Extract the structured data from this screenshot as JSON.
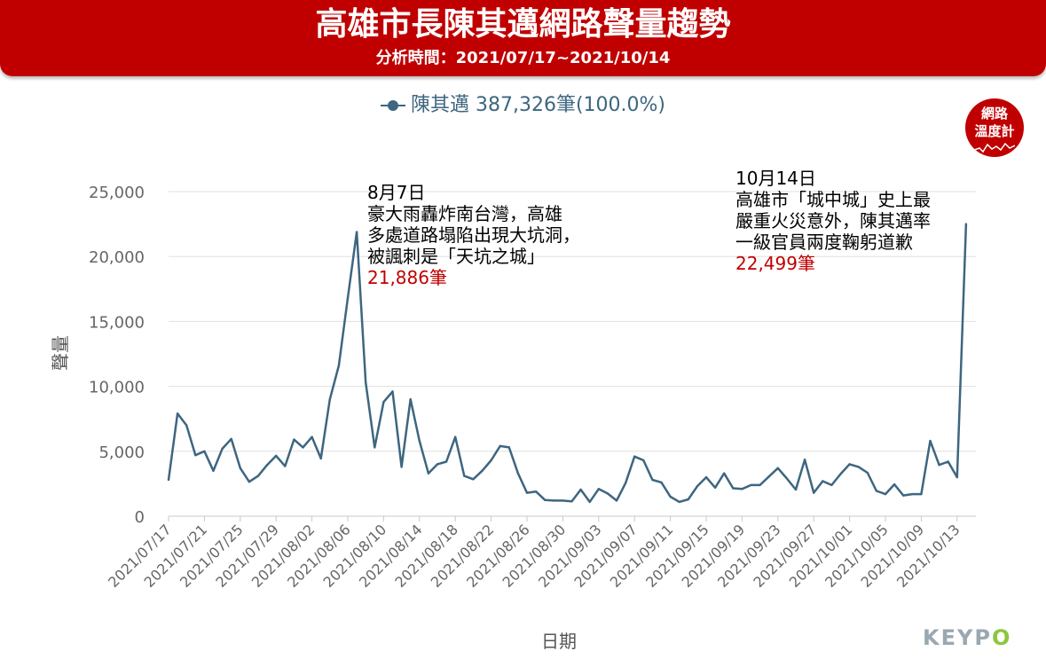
{
  "header": {
    "title": "高雄市長陳其邁網路聲量趨勢",
    "subtitle": "分析時間：2021/07/17~2021/10/14"
  },
  "legend": {
    "text": "陳其邁 387,326筆(100.0%)"
  },
  "badge": {
    "line1": "網路",
    "line2": "溫度計"
  },
  "logo": {
    "main": "KEYP",
    "accent": "O"
  },
  "annotations": [
    {
      "lines": [
        "8月7日",
        "豪大雨轟炸南台灣，高雄",
        "多處道路塌陷出現大坑洞，",
        "被諷刺是「天坑之城」"
      ],
      "highlight": "21,886筆"
    },
    {
      "lines": [
        "10月14日",
        "高雄市「城中城」史上最",
        "嚴重火災意外，陳其邁率",
        "一級官員兩度鞠躬道歉"
      ],
      "highlight": "22,499筆"
    }
  ],
  "chart_data": {
    "type": "line",
    "xlabel": "日期",
    "ylabel": "聲量",
    "ylim": [
      0,
      25000
    ],
    "yticks": [
      0,
      5000,
      10000,
      15000,
      20000,
      25000
    ],
    "ytick_labels": [
      "0",
      "5,000",
      "10,000",
      "15,000",
      "20,000",
      "25,000"
    ],
    "xtick_labels": [
      "2021/07/17",
      "2021/07/21",
      "2021/07/25",
      "2021/07/29",
      "2021/08/02",
      "2021/08/06",
      "2021/08/10",
      "2021/08/14",
      "2021/08/18",
      "2021/08/22",
      "2021/08/26",
      "2021/08/30",
      "2021/09/03",
      "2021/09/07",
      "2021/09/11",
      "2021/09/15",
      "2021/09/19",
      "2021/09/23",
      "2021/09/27",
      "2021/10/01",
      "2021/10/05",
      "2021/10/09",
      "2021/10/13"
    ],
    "grid": true,
    "line_color": "#3e6680",
    "series": [
      {
        "name": "陳其邁",
        "x": [
          "2021/07/17",
          "2021/07/18",
          "2021/07/19",
          "2021/07/20",
          "2021/07/21",
          "2021/07/22",
          "2021/07/23",
          "2021/07/24",
          "2021/07/25",
          "2021/07/26",
          "2021/07/27",
          "2021/07/28",
          "2021/07/29",
          "2021/07/30",
          "2021/07/31",
          "2021/08/01",
          "2021/08/02",
          "2021/08/03",
          "2021/08/04",
          "2021/08/05",
          "2021/08/06",
          "2021/08/07",
          "2021/08/08",
          "2021/08/09",
          "2021/08/10",
          "2021/08/11",
          "2021/08/12",
          "2021/08/13",
          "2021/08/14",
          "2021/08/15",
          "2021/08/16",
          "2021/08/17",
          "2021/08/18",
          "2021/08/19",
          "2021/08/20",
          "2021/08/21",
          "2021/08/22",
          "2021/08/23",
          "2021/08/24",
          "2021/08/25",
          "2021/08/26",
          "2021/08/27",
          "2021/08/28",
          "2021/08/29",
          "2021/08/30",
          "2021/08/31",
          "2021/09/01",
          "2021/09/02",
          "2021/09/03",
          "2021/09/04",
          "2021/09/05",
          "2021/09/06",
          "2021/09/07",
          "2021/09/08",
          "2021/09/09",
          "2021/09/10",
          "2021/09/11",
          "2021/09/12",
          "2021/09/13",
          "2021/09/14",
          "2021/09/15",
          "2021/09/16",
          "2021/09/17",
          "2021/09/18",
          "2021/09/19",
          "2021/09/20",
          "2021/09/21",
          "2021/09/22",
          "2021/09/23",
          "2021/09/24",
          "2021/09/25",
          "2021/09/26",
          "2021/09/27",
          "2021/09/28",
          "2021/09/29",
          "2021/09/30",
          "2021/10/01",
          "2021/10/02",
          "2021/10/03",
          "2021/10/04",
          "2021/10/05",
          "2021/10/06",
          "2021/10/07",
          "2021/10/08",
          "2021/10/09",
          "2021/10/10",
          "2021/10/11",
          "2021/10/12",
          "2021/10/13",
          "2021/10/14"
        ],
        "values": [
          2800,
          7900,
          7000,
          4700,
          5000,
          3500,
          5200,
          5950,
          3700,
          2650,
          3100,
          3950,
          4650,
          3850,
          5900,
          5300,
          6100,
          4450,
          9000,
          11600,
          16800,
          21886,
          10300,
          5300,
          8800,
          9600,
          3800,
          9000,
          5800,
          3300,
          4000,
          4200,
          6100,
          3100,
          2850,
          3500,
          4300,
          5400,
          5300,
          3300,
          1800,
          1900,
          1250,
          1200,
          1200,
          1150,
          2050,
          1100,
          2100,
          1750,
          1200,
          2550,
          4600,
          4300,
          2800,
          2600,
          1500,
          1100,
          1300,
          2300,
          3000,
          2200,
          3300,
          2150,
          2100,
          2400,
          2400,
          3050,
          3700,
          2900,
          2050,
          4350,
          1800,
          2700,
          2400,
          3250,
          4000,
          3800,
          3350,
          1950,
          1700,
          2450,
          1600,
          1700,
          1700,
          5800,
          3950,
          4200,
          3000,
          22499
        ]
      }
    ]
  }
}
